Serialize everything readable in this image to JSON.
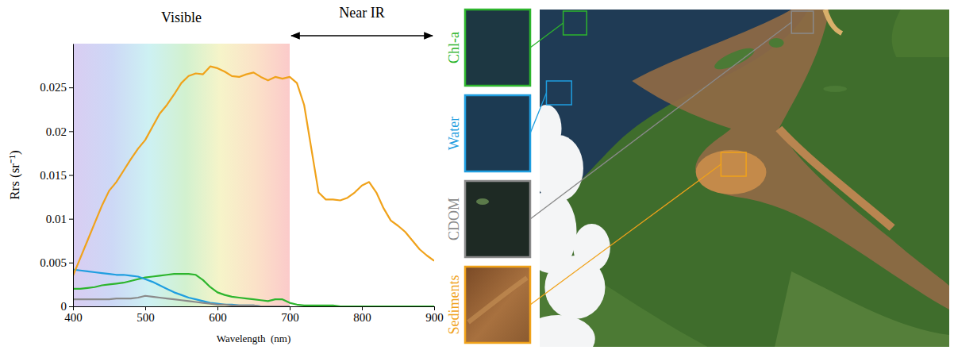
{
  "chart_data": {
    "type": "line",
    "x_label": "Wavelength  (nm)",
    "y_label": "Rrs (sr⁻¹)",
    "xlim": [
      400,
      900
    ],
    "xticks": [
      400,
      500,
      600,
      700,
      800,
      900
    ],
    "ylim": [
      0,
      0.03
    ],
    "yticks": [
      0,
      0.005,
      0.01,
      0.015,
      0.02,
      0.025
    ],
    "annotations": [
      {
        "text": "Visible",
        "x": [
          400,
          700
        ]
      },
      {
        "text": "Near IR",
        "x": [
          700,
          900
        ]
      }
    ],
    "x": [
      400,
      410,
      420,
      430,
      440,
      450,
      460,
      470,
      480,
      490,
      500,
      510,
      520,
      530,
      540,
      550,
      560,
      570,
      580,
      590,
      600,
      610,
      620,
      630,
      640,
      650,
      660,
      670,
      680,
      690,
      700,
      710,
      720,
      730,
      740,
      750,
      760,
      770,
      780,
      790,
      800,
      810,
      820,
      830,
      840,
      850,
      860,
      870,
      880,
      890,
      900
    ],
    "series": [
      {
        "name": "Chl-a",
        "color": "#2db52d",
        "values": [
          0.002,
          0.002,
          0.0021,
          0.0022,
          0.0024,
          0.0025,
          0.0026,
          0.0027,
          0.0029,
          0.0031,
          0.0033,
          0.0034,
          0.0035,
          0.0036,
          0.0037,
          0.0037,
          0.0037,
          0.0036,
          0.003,
          0.0022,
          0.0016,
          0.0013,
          0.0011,
          0.001,
          0.0009,
          0.0008,
          0.0007,
          0.0006,
          0.0008,
          0.0008,
          0.0004,
          0.0002,
          0.0001,
          0.0001,
          0.0001,
          0.0001,
          0.0001,
          0,
          0,
          0,
          0,
          0,
          0,
          0,
          0,
          0,
          0,
          0,
          0,
          0,
          0
        ]
      },
      {
        "name": "Water",
        "color": "#1f9ee0",
        "values": [
          0.0042,
          0.0041,
          0.004,
          0.0039,
          0.0038,
          0.0037,
          0.0036,
          0.0036,
          0.0035,
          0.0034,
          0.0031,
          0.0028,
          0.0024,
          0.002,
          0.0016,
          0.0013,
          0.001,
          0.0008,
          0.0006,
          0.0004,
          0.0003,
          0.0002,
          0.0002,
          0.0001,
          0.0001,
          0.0001,
          0,
          0,
          0,
          0,
          0,
          null,
          null,
          null,
          null,
          null,
          null,
          null,
          null,
          null,
          null,
          null,
          null,
          null,
          null,
          null,
          null,
          null,
          null,
          null,
          null
        ]
      },
      {
        "name": "CDOM",
        "color": "#8a8a8a",
        "values": [
          0.0008,
          0.0008,
          0.0008,
          0.0008,
          0.0008,
          0.0008,
          0.0009,
          0.0009,
          0.0009,
          0.001,
          0.0012,
          0.0011,
          0.001,
          0.0009,
          0.0008,
          0.0007,
          0.0006,
          0.0005,
          0.0004,
          0.0003,
          0.0002,
          0.0002,
          0.0001,
          0.0001,
          0.0001,
          0.0001,
          0,
          0,
          0,
          0,
          0,
          null,
          null,
          null,
          null,
          null,
          null,
          null,
          null,
          null,
          null,
          null,
          null,
          null,
          null,
          null,
          null,
          null,
          null,
          null,
          null
        ]
      },
      {
        "name": "Sediments",
        "color": "#f0a21a",
        "values": [
          0.0035,
          0.0055,
          0.0075,
          0.0095,
          0.0115,
          0.0132,
          0.0142,
          0.0155,
          0.0168,
          0.018,
          0.019,
          0.0205,
          0.022,
          0.023,
          0.0242,
          0.0255,
          0.0263,
          0.0266,
          0.0265,
          0.0274,
          0.0272,
          0.0268,
          0.0263,
          0.0262,
          0.0265,
          0.0267,
          0.0262,
          0.0258,
          0.0262,
          0.026,
          0.0262,
          0.0255,
          0.023,
          0.018,
          0.013,
          0.0122,
          0.0122,
          0.0121,
          0.0124,
          0.013,
          0.0138,
          0.0142,
          0.013,
          0.0112,
          0.0098,
          0.0092,
          0.0085,
          0.0075,
          0.0065,
          0.0058,
          0.0052
        ]
      }
    ]
  }
}
